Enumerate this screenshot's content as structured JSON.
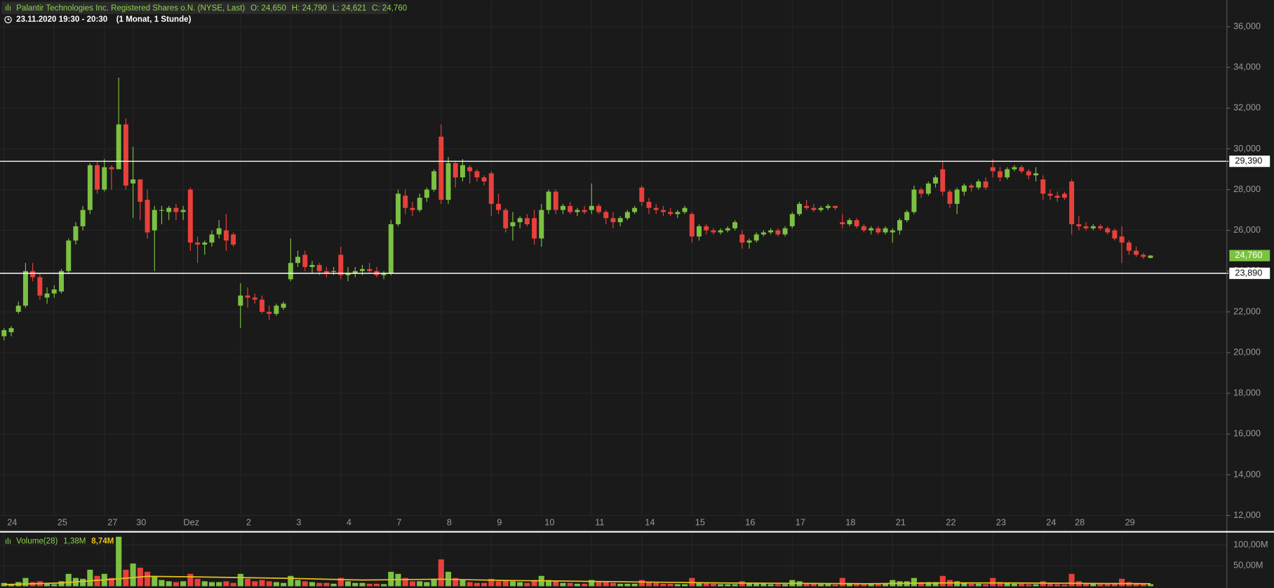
{
  "chart_data": {
    "type": "candlestick",
    "header": {
      "instrument": "Palantir Technologies Inc. Registered Shares o.N. (NYSE, Last)",
      "ohlc": [
        "O: 24,650",
        "H: 24,790",
        "L: 24,621",
        "C: 24,760"
      ],
      "period": "23.11.2020 19:30 - 20:30",
      "interval": "(1 Monat, 1 Stunde)"
    },
    "ylim": [
      11.2,
      37.3
    ],
    "yticks": [
      {
        "value": 12,
        "label": "12,000"
      },
      {
        "value": 14,
        "label": "14,000"
      },
      {
        "value": 16,
        "label": "16,000"
      },
      {
        "value": 18,
        "label": "18,000"
      },
      {
        "value": 20,
        "label": "20,000"
      },
      {
        "value": 22,
        "label": "22,000"
      },
      {
        "value": 24,
        "label": "24,000"
      },
      {
        "value": 26,
        "label": "26,000"
      },
      {
        "value": 28,
        "label": "28,000"
      },
      {
        "value": 30,
        "label": "30,000"
      },
      {
        "value": 32,
        "label": "32,000"
      },
      {
        "value": 34,
        "label": "34,000"
      },
      {
        "value": 36,
        "label": "36,000"
      }
    ],
    "xlim": [
      -0.6,
      170
    ],
    "xticks": [
      {
        "value": 0,
        "label": "24"
      },
      {
        "value": 7,
        "label": "25"
      },
      {
        "value": 14,
        "label": "27"
      },
      {
        "value": 18,
        "label": "30"
      },
      {
        "value": 25,
        "label": "Dez"
      },
      {
        "value": 33,
        "label": "2"
      },
      {
        "value": 40,
        "label": "3"
      },
      {
        "value": 47,
        "label": "4"
      },
      {
        "value": 54,
        "label": "7"
      },
      {
        "value": 61,
        "label": "8"
      },
      {
        "value": 68,
        "label": "9"
      },
      {
        "value": 75,
        "label": "10"
      },
      {
        "value": 82,
        "label": "11"
      },
      {
        "value": 89,
        "label": "14"
      },
      {
        "value": 96,
        "label": "15"
      },
      {
        "value": 103,
        "label": "16"
      },
      {
        "value": 110,
        "label": "17"
      },
      {
        "value": 117,
        "label": "18"
      },
      {
        "value": 124,
        "label": "21"
      },
      {
        "value": 131,
        "label": "22"
      },
      {
        "value": 138,
        "label": "23"
      },
      {
        "value": 145,
        "label": "24"
      },
      {
        "value": 149,
        "label": "28"
      },
      {
        "value": 156,
        "label": "29"
      }
    ],
    "grid": true,
    "up_color": "#7cc142",
    "down_color": "#e8403b",
    "levels": [
      {
        "value": 29.39,
        "label": "29,390"
      },
      {
        "value": 23.89,
        "label": "23,890"
      }
    ],
    "last_price": {
      "value": 24.76,
      "label": "24,760"
    },
    "candles": [
      [
        20.8,
        21.2,
        20.6,
        21.1,
        8
      ],
      [
        21.0,
        21.3,
        20.8,
        21.2,
        5
      ],
      [
        22.0,
        22.5,
        21.9,
        22.3,
        10
      ],
      [
        22.3,
        24.4,
        22.2,
        24.0,
        20
      ],
      [
        24.0,
        24.4,
        23.5,
        23.7,
        10
      ],
      [
        23.7,
        23.9,
        22.6,
        22.8,
        12
      ],
      [
        22.7,
        23.2,
        22.4,
        22.9,
        6
      ],
      [
        22.9,
        23.3,
        22.7,
        23.1,
        5
      ],
      [
        23.0,
        24.1,
        22.9,
        24.0,
        12
      ],
      [
        24.0,
        25.6,
        23.9,
        25.5,
        30
      ],
      [
        25.5,
        26.4,
        25.3,
        26.2,
        20
      ],
      [
        26.2,
        27.2,
        26.0,
        27.0,
        18
      ],
      [
        27.0,
        29.3,
        26.8,
        29.2,
        40
      ],
      [
        29.2,
        29.4,
        27.8,
        28.0,
        25
      ],
      [
        28.0,
        29.5,
        27.9,
        29.1,
        30
      ],
      [
        29.1,
        29.2,
        28.0,
        29.0,
        20
      ],
      [
        29.0,
        33.5,
        29.0,
        31.2,
        120
      ],
      [
        31.2,
        31.5,
        28.0,
        28.2,
        40
      ],
      [
        28.3,
        30.1,
        26.6,
        28.5,
        55
      ],
      [
        28.5,
        28.5,
        26.5,
        27.4,
        45
      ],
      [
        27.5,
        28.0,
        25.6,
        25.9,
        35
      ],
      [
        26.0,
        27.2,
        24.0,
        27.0,
        25
      ],
      [
        27.0,
        27.2,
        26.3,
        27.0,
        15
      ],
      [
        26.9,
        27.2,
        26.5,
        27.1,
        12
      ],
      [
        27.1,
        27.3,
        26.5,
        26.9,
        10
      ],
      [
        26.9,
        27.2,
        26.5,
        27.0,
        12
      ],
      [
        28.0,
        28.1,
        25.0,
        25.4,
        30
      ],
      [
        25.4,
        25.7,
        24.4,
        25.3,
        18
      ],
      [
        25.3,
        25.5,
        24.8,
        25.4,
        12
      ],
      [
        25.4,
        26.0,
        25.2,
        25.8,
        10
      ],
      [
        25.8,
        26.5,
        25.6,
        26.1,
        10
      ],
      [
        26.0,
        26.8,
        25.0,
        25.5,
        12
      ],
      [
        25.8,
        25.9,
        25.2,
        25.3,
        8
      ],
      [
        22.3,
        23.4,
        21.2,
        22.8,
        30
      ],
      [
        22.8,
        23.2,
        22.2,
        22.7,
        18
      ],
      [
        22.7,
        22.9,
        22.4,
        22.6,
        12
      ],
      [
        22.6,
        22.8,
        21.9,
        22.0,
        15
      ],
      [
        22.0,
        22.3,
        21.6,
        21.9,
        12
      ],
      [
        21.9,
        22.4,
        21.8,
        22.3,
        10
      ],
      [
        22.2,
        22.5,
        22.1,
        22.4,
        8
      ],
      [
        23.6,
        25.6,
        23.5,
        24.4,
        25
      ],
      [
        24.4,
        25.0,
        24.2,
        24.7,
        15
      ],
      [
        24.8,
        25.0,
        24.0,
        24.2,
        12
      ],
      [
        24.2,
        24.5,
        23.9,
        24.3,
        10
      ],
      [
        24.3,
        24.4,
        23.8,
        24.0,
        8
      ],
      [
        24.0,
        24.2,
        23.7,
        23.9,
        8
      ],
      [
        24.0,
        24.2,
        23.8,
        24.0,
        6
      ],
      [
        24.8,
        25.2,
        23.6,
        23.8,
        20
      ],
      [
        23.8,
        24.2,
        23.5,
        23.9,
        12
      ],
      [
        23.9,
        24.2,
        23.7,
        24.0,
        8
      ],
      [
        24.0,
        24.3,
        23.8,
        24.1,
        8
      ],
      [
        24.1,
        24.4,
        23.9,
        24.0,
        6
      ],
      [
        24.0,
        24.2,
        23.7,
        23.8,
        6
      ],
      [
        23.8,
        24.0,
        23.6,
        23.9,
        5
      ],
      [
        23.9,
        26.5,
        23.8,
        26.3,
        35
      ],
      [
        26.3,
        28.0,
        26.2,
        27.8,
        30
      ],
      [
        27.7,
        28.0,
        26.8,
        27.1,
        20
      ],
      [
        27.1,
        27.4,
        26.7,
        27.0,
        12
      ],
      [
        27.0,
        27.8,
        26.9,
        27.6,
        12
      ],
      [
        27.6,
        28.1,
        27.4,
        28.0,
        10
      ],
      [
        28.0,
        29.0,
        27.9,
        28.9,
        18
      ],
      [
        30.6,
        31.2,
        27.3,
        27.5,
        65
      ],
      [
        27.5,
        29.6,
        27.3,
        29.3,
        35
      ],
      [
        29.3,
        29.4,
        28.1,
        28.6,
        20
      ],
      [
        28.6,
        29.5,
        28.4,
        29.2,
        15
      ],
      [
        29.1,
        29.2,
        28.3,
        28.9,
        10
      ],
      [
        28.9,
        29.0,
        28.4,
        28.6,
        8
      ],
      [
        28.6,
        28.7,
        28.2,
        28.4,
        8
      ],
      [
        28.8,
        28.9,
        26.7,
        27.3,
        18
      ],
      [
        27.3,
        27.8,
        26.8,
        27.0,
        12
      ],
      [
        27.0,
        27.1,
        25.9,
        26.1,
        15
      ],
      [
        26.2,
        26.9,
        25.5,
        26.4,
        12
      ],
      [
        26.4,
        26.7,
        26.1,
        26.6,
        10
      ],
      [
        26.6,
        26.8,
        26.2,
        26.3,
        8
      ],
      [
        26.6,
        27.0,
        25.3,
        25.6,
        15
      ],
      [
        25.6,
        27.3,
        25.2,
        27.0,
        25
      ],
      [
        27.0,
        28.0,
        26.8,
        27.9,
        15
      ],
      [
        27.9,
        28.0,
        26.8,
        27.0,
        12
      ],
      [
        27.0,
        27.3,
        26.8,
        27.2,
        8
      ],
      [
        27.2,
        27.4,
        26.8,
        26.9,
        8
      ],
      [
        26.9,
        27.1,
        26.7,
        27.0,
        6
      ],
      [
        27.0,
        27.2,
        26.8,
        26.9,
        6
      ],
      [
        27.0,
        28.3,
        26.8,
        27.2,
        15
      ],
      [
        27.2,
        27.3,
        26.8,
        26.9,
        10
      ],
      [
        26.9,
        27.0,
        26.3,
        26.6,
        10
      ],
      [
        26.6,
        26.9,
        26.1,
        26.4,
        8
      ],
      [
        26.4,
        26.7,
        26.2,
        26.6,
        6
      ],
      [
        26.6,
        27.0,
        26.5,
        26.9,
        6
      ],
      [
        26.9,
        27.2,
        26.8,
        27.1,
        6
      ],
      [
        28.1,
        28.2,
        27.2,
        27.4,
        15
      ],
      [
        27.4,
        27.6,
        26.8,
        27.1,
        10
      ],
      [
        27.1,
        27.3,
        26.8,
        27.0,
        8
      ],
      [
        27.0,
        27.2,
        26.7,
        26.9,
        6
      ],
      [
        26.9,
        27.1,
        26.7,
        26.8,
        6
      ],
      [
        26.8,
        27.0,
        26.6,
        26.9,
        5
      ],
      [
        26.9,
        27.2,
        26.8,
        27.1,
        5
      ],
      [
        26.8,
        26.9,
        25.4,
        25.7,
        20
      ],
      [
        25.7,
        26.3,
        25.5,
        26.2,
        10
      ],
      [
        26.2,
        26.3,
        25.8,
        26.0,
        8
      ],
      [
        26.0,
        26.1,
        25.8,
        25.9,
        6
      ],
      [
        25.9,
        26.1,
        25.8,
        26.0,
        5
      ],
      [
        26.0,
        26.2,
        25.9,
        26.1,
        5
      ],
      [
        26.1,
        26.5,
        26.0,
        26.4,
        5
      ],
      [
        25.8,
        26.0,
        25.1,
        25.4,
        12
      ],
      [
        25.4,
        25.6,
        25.1,
        25.5,
        8
      ],
      [
        25.5,
        25.9,
        25.4,
        25.8,
        8
      ],
      [
        25.8,
        26.0,
        25.7,
        25.9,
        6
      ],
      [
        25.9,
        26.1,
        25.8,
        26.0,
        5
      ],
      [
        26.0,
        26.1,
        25.7,
        25.8,
        5
      ],
      [
        25.8,
        26.2,
        25.7,
        26.1,
        5
      ],
      [
        26.2,
        26.9,
        26.1,
        26.8,
        15
      ],
      [
        26.8,
        27.4,
        26.7,
        27.3,
        12
      ],
      [
        27.2,
        27.5,
        27.0,
        27.1,
        8
      ],
      [
        27.1,
        27.3,
        26.9,
        27.0,
        6
      ],
      [
        27.0,
        27.2,
        26.9,
        27.1,
        5
      ],
      [
        27.1,
        27.3,
        27.0,
        27.2,
        5
      ],
      [
        27.2,
        27.2,
        27.0,
        27.1,
        4
      ],
      [
        26.4,
        26.8,
        26.1,
        26.3,
        20
      ],
      [
        26.3,
        26.6,
        26.2,
        26.5,
        8
      ],
      [
        26.5,
        26.6,
        26.1,
        26.2,
        8
      ],
      [
        26.2,
        26.3,
        25.9,
        26.0,
        6
      ],
      [
        26.0,
        26.2,
        25.8,
        26.1,
        6
      ],
      [
        26.1,
        26.2,
        25.8,
        25.9,
        5
      ],
      [
        25.9,
        26.2,
        25.8,
        26.1,
        5
      ],
      [
        25.9,
        26.1,
        25.4,
        26.0,
        15
      ],
      [
        26.0,
        26.6,
        25.8,
        26.5,
        12
      ],
      [
        26.5,
        27.0,
        26.4,
        26.9,
        12
      ],
      [
        26.9,
        28.2,
        26.8,
        28.0,
        20
      ],
      [
        28.0,
        28.1,
        27.6,
        27.8,
        10
      ],
      [
        27.8,
        28.4,
        27.7,
        28.3,
        10
      ],
      [
        28.3,
        28.7,
        28.1,
        28.6,
        10
      ],
      [
        29.0,
        29.4,
        27.7,
        27.9,
        25
      ],
      [
        27.9,
        28.0,
        27.1,
        27.3,
        15
      ],
      [
        27.3,
        28.1,
        26.8,
        28.0,
        12
      ],
      [
        27.9,
        28.3,
        27.7,
        28.2,
        8
      ],
      [
        28.2,
        28.3,
        27.9,
        28.1,
        6
      ],
      [
        28.1,
        28.5,
        28.0,
        28.4,
        6
      ],
      [
        28.4,
        28.6,
        28.0,
        28.1,
        5
      ],
      [
        29.1,
        29.5,
        28.6,
        28.9,
        20
      ],
      [
        28.9,
        29.1,
        28.4,
        28.6,
        10
      ],
      [
        28.6,
        29.1,
        28.5,
        29.0,
        8
      ],
      [
        29.0,
        29.2,
        28.9,
        29.1,
        6
      ],
      [
        29.1,
        29.2,
        28.8,
        28.9,
        6
      ],
      [
        28.9,
        29.0,
        28.5,
        28.7,
        5
      ],
      [
        28.7,
        29.1,
        28.4,
        28.8,
        5
      ],
      [
        28.5,
        28.7,
        27.5,
        27.8,
        12
      ],
      [
        27.8,
        28.0,
        27.5,
        27.7,
        6
      ],
      [
        27.7,
        27.9,
        27.4,
        27.6,
        5
      ],
      [
        27.8,
        27.9,
        27.5,
        27.6,
        4
      ],
      [
        28.4,
        28.5,
        25.8,
        26.3,
        30
      ],
      [
        26.3,
        26.7,
        26.0,
        26.2,
        12
      ],
      [
        26.2,
        26.4,
        26.0,
        26.1,
        8
      ],
      [
        26.1,
        26.3,
        26.0,
        26.2,
        6
      ],
      [
        26.2,
        26.3,
        26.0,
        26.1,
        5
      ],
      [
        26.1,
        26.2,
        25.8,
        25.9,
        5
      ],
      [
        26.0,
        26.1,
        25.5,
        25.6,
        8
      ],
      [
        25.7,
        26.2,
        24.4,
        25.4,
        18
      ],
      [
        25.4,
        25.5,
        24.8,
        25.0,
        10
      ],
      [
        25.0,
        25.2,
        24.7,
        24.8,
        8
      ],
      [
        24.8,
        24.9,
        24.6,
        24.7,
        6
      ],
      [
        24.65,
        24.79,
        24.621,
        24.76,
        5
      ]
    ],
    "volume": {
      "legend": [
        "Volume(28)",
        "1,38M",
        "8,74M"
      ],
      "ylim": [
        0,
        128
      ],
      "yticks": [
        {
          "value": 50,
          "label": "50,00M"
        },
        {
          "value": 100,
          "label": "100,00M"
        }
      ],
      "ma_color": "#e8c21a",
      "ma": {
        "x": [
          0,
          8,
          16,
          20,
          25,
          33,
          40,
          50,
          61,
          70,
          80,
          90,
          100,
          110,
          120,
          131,
          140,
          150,
          160
        ],
        "values": [
          4,
          8,
          18,
          24,
          23,
          21,
          19,
          15,
          17,
          14,
          12,
          10,
          8,
          7,
          6,
          8,
          8,
          7,
          6
        ]
      }
    }
  }
}
